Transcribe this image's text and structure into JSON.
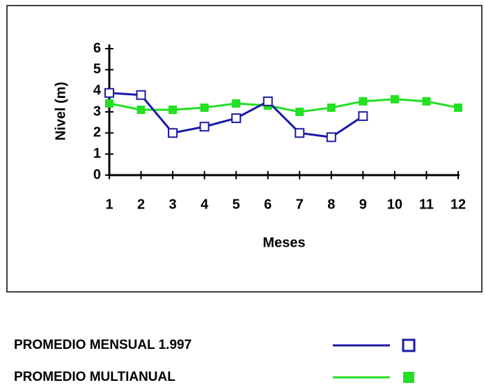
{
  "chart_data": {
    "type": "line",
    "x_label": "Meses",
    "y_label": "Nivel (m)",
    "x": [
      1,
      2,
      3,
      4,
      5,
      6,
      7,
      8,
      9,
      10,
      11,
      12
    ],
    "series": [
      {
        "name": "PROMEDIO MENSUAL 1.997",
        "color": "#1a1aa6",
        "marker": "open-square",
        "values": [
          3.9,
          3.8,
          2.0,
          2.3,
          2.7,
          3.5,
          2.0,
          1.8,
          2.8,
          null,
          null,
          null
        ]
      },
      {
        "name": "PROMEDIO MULTIANUAL",
        "color": "#22e022",
        "marker": "filled-square",
        "values": [
          3.4,
          3.1,
          3.1,
          3.2,
          3.4,
          3.3,
          3.0,
          3.2,
          3.5,
          3.6,
          3.5,
          3.2
        ]
      }
    ],
    "xlim": [
      1,
      12
    ],
    "xticks": [
      1,
      2,
      3,
      4,
      5,
      6,
      7,
      8,
      9,
      10,
      11,
      12
    ],
    "ylim": [
      0,
      6
    ],
    "yticks": [
      0,
      1,
      2,
      3,
      4,
      5,
      6
    ],
    "grid": false,
    "legend": "bottom"
  }
}
